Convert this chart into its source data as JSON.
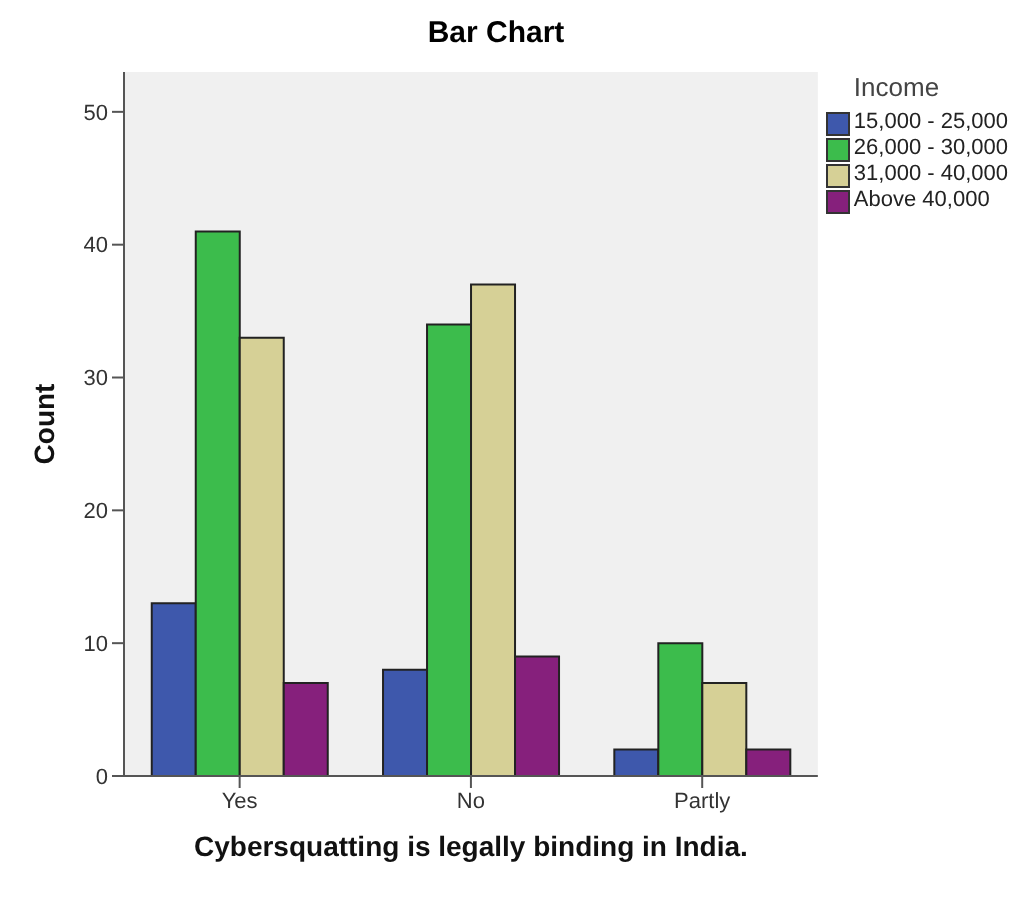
{
  "chart_data": {
    "type": "bar",
    "title": "Bar Chart",
    "xlabel": "Cybersquatting is legally binding in India.",
    "ylabel": "Count",
    "legend_title": "Income",
    "categories": [
      "Yes",
      "No",
      "Partly"
    ],
    "series": [
      {
        "name": "15,000 - 25,000",
        "color": "#3e58ac",
        "values": [
          13,
          8,
          2
        ]
      },
      {
        "name": "26,000 - 30,000",
        "color": "#3cbc4c",
        "values": [
          41,
          34,
          10
        ]
      },
      {
        "name": "31,000 - 40,000",
        "color": "#d6d096",
        "values": [
          33,
          37,
          7
        ]
      },
      {
        "name": "Above 40,000",
        "color": "#86207c",
        "values": [
          7,
          9,
          2
        ]
      }
    ],
    "ylim": [
      0,
      53
    ],
    "yticks": [
      0,
      10,
      20,
      30,
      40,
      50
    ],
    "grid": false,
    "legend": "top right"
  }
}
